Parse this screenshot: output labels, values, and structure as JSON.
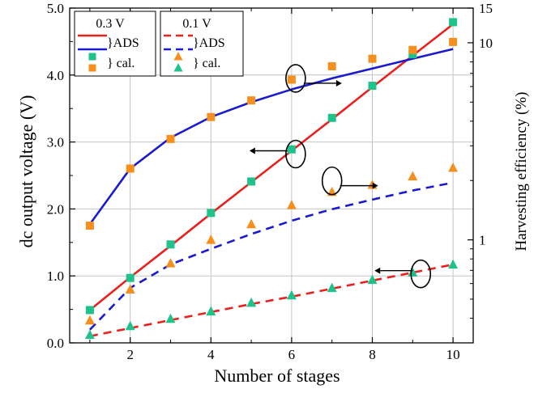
{
  "chart_data": {
    "type": "line",
    "xlabel": "Number of stages",
    "ylabel_left": "dc output voltage (V)",
    "ylabel_right": "Harvesting efficiency (%)",
    "xlim": [
      0.5,
      10.5
    ],
    "ylim_left": [
      0,
      5
    ],
    "ylim_right": [
      0.3,
      15
    ],
    "right_axis_scale": "log",
    "x_ticks": [
      "2",
      "4",
      "6",
      "8",
      "10"
    ],
    "y_left_ticks": [
      "0.0",
      "1.0",
      "2.0",
      "3.0",
      "4.0",
      "5.0"
    ],
    "y_right_ticks": [
      "1",
      "10",
      "15"
    ],
    "grid": true,
    "x": [
      1,
      2,
      3,
      4,
      5,
      6,
      7,
      8,
      9,
      10
    ],
    "series": [
      {
        "name": "ADS",
        "group": "0.3 V",
        "axis": "left",
        "quantity": "voltage",
        "style": "solid",
        "color": "#e8201e",
        "values": [
          0.49,
          0.98,
          1.45,
          1.93,
          2.4,
          2.87,
          3.34,
          3.82,
          4.29,
          4.76
        ]
      },
      {
        "name": "ADS",
        "group": "0.3 V",
        "axis": "right",
        "quantity": "efficiency",
        "style": "solid",
        "color": "#1a1ad0",
        "values": [
          1.2,
          2.3,
          3.3,
          4.2,
          5.0,
          5.8,
          6.6,
          7.4,
          8.3,
          9.3
        ]
      },
      {
        "name": "cal.",
        "group": "0.3 V",
        "axis": "left",
        "quantity": "voltage",
        "marker": "square",
        "color": "#1fc28a",
        "values": [
          0.49,
          0.97,
          1.47,
          1.94,
          2.41,
          2.89,
          3.36,
          3.84,
          4.31,
          4.79
        ]
      },
      {
        "name": "cal.",
        "group": "0.3 V",
        "axis": "right",
        "quantity": "efficiency",
        "marker": "square",
        "color": "#f5901e",
        "values": [
          1.18,
          2.3,
          3.25,
          4.2,
          5.1,
          6.5,
          7.6,
          8.3,
          9.2,
          10.1
        ]
      },
      {
        "name": "ADS",
        "group": "0.1 V",
        "axis": "left",
        "quantity": "voltage",
        "style": "dashed",
        "color": "#e8201e",
        "values": [
          0.1,
          0.22,
          0.34,
          0.46,
          0.58,
          0.69,
          0.81,
          0.93,
          1.05,
          1.17
        ]
      },
      {
        "name": "ADS",
        "group": "0.1 V",
        "axis": "right",
        "quantity": "efficiency",
        "style": "dashed",
        "color": "#1a1ad0",
        "values": [
          0.35,
          0.57,
          0.75,
          0.9,
          1.07,
          1.25,
          1.43,
          1.6,
          1.78,
          1.95
        ]
      },
      {
        "name": "cal.",
        "group": "0.1 V",
        "axis": "right",
        "quantity": "efficiency",
        "marker": "triangle",
        "color": "#f5901e",
        "values": [
          0.39,
          0.56,
          0.76,
          1.0,
          1.2,
          1.5,
          1.75,
          1.9,
          2.1,
          2.32
        ]
      },
      {
        "name": "cal.",
        "group": "0.1 V",
        "axis": "left",
        "quantity": "voltage",
        "marker": "triangle",
        "color": "#1fc28a",
        "values": [
          0.12,
          0.25,
          0.36,
          0.47,
          0.6,
          0.71,
          0.82,
          0.94,
          1.05,
          1.17
        ]
      }
    ],
    "legend": {
      "groups": [
        {
          "title": "0.3 V",
          "line_label": "}ADS",
          "marker_label": "} cal."
        },
        {
          "title": "0.1 V",
          "line_label": "}ADS",
          "marker_label": "} cal."
        }
      ],
      "placement": "top-left"
    },
    "annotations": [
      {
        "x": 6.1,
        "y": 3.95,
        "arrow": "right"
      },
      {
        "x": 6.1,
        "y": 2.82,
        "arrow": "left"
      },
      {
        "x": 7.0,
        "y": 2.42,
        "arrow": "right"
      },
      {
        "x": 9.2,
        "y": 1.03,
        "arrow": "left"
      }
    ]
  }
}
